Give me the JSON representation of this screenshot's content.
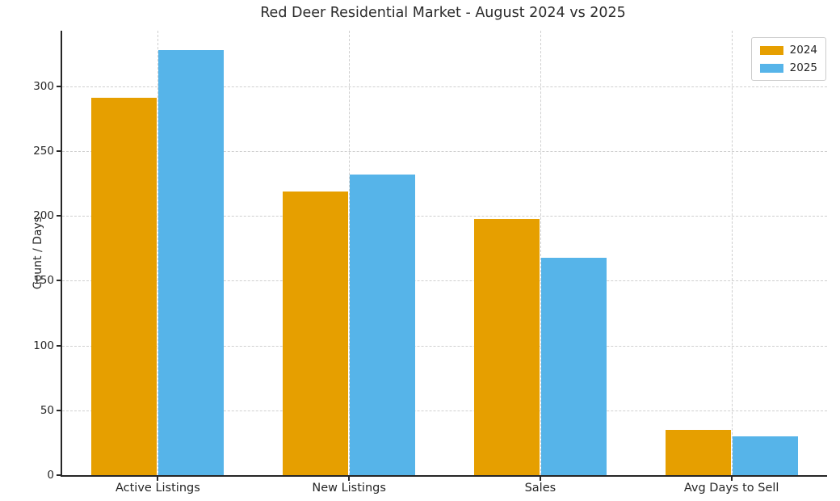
{
  "chart_data": {
    "type": "bar",
    "title": "Red Deer Residential Market - August 2024 vs 2025",
    "xlabel": "",
    "ylabel": "Count / Days",
    "categories": [
      "Active Listings",
      "New Listings",
      "Sales",
      "Avg Days to Sell"
    ],
    "series": [
      {
        "name": "2024",
        "color": "#E69F00",
        "values": [
          291,
          219,
          198,
          35
        ]
      },
      {
        "name": "2025",
        "color": "#56B4E9",
        "values": [
          328,
          232,
          168,
          30
        ]
      }
    ],
    "yticks": [
      0,
      50,
      100,
      150,
      200,
      250,
      300
    ],
    "ylim": [
      0,
      343
    ],
    "grid": "dashed horizontal and vertical gridlines",
    "grid_color": "#cfcfcf",
    "axis_color": "#262626",
    "legend_position": "upper right"
  }
}
